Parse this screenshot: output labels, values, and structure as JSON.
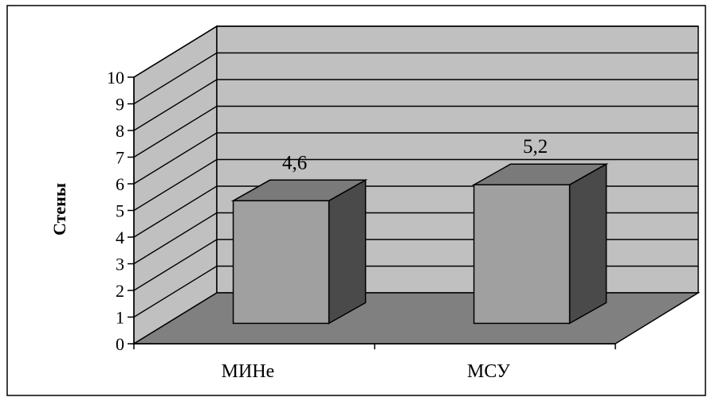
{
  "chart_data": {
    "type": "bar",
    "style": "3d-column",
    "categories": [
      "МИНе",
      "МСУ"
    ],
    "values": [
      4.6,
      5.2
    ],
    "data_labels": [
      "4,6",
      "5,2"
    ],
    "ylabel": "Стены",
    "ylim": [
      0,
      10
    ],
    "yticks": [
      "0",
      "1",
      "2",
      "3",
      "4",
      "5",
      "6",
      "7",
      "8",
      "9",
      "10"
    ],
    "grid": true,
    "legend": "none",
    "colors": {
      "back_wall": "#c0c0c0",
      "side_wall": "#c0c0c0",
      "floor": "#808080",
      "bar_front": "#a0a0a0",
      "bar_top": "#7a7a7a",
      "bar_side": "#4a4a4a",
      "line": "#000000"
    }
  }
}
